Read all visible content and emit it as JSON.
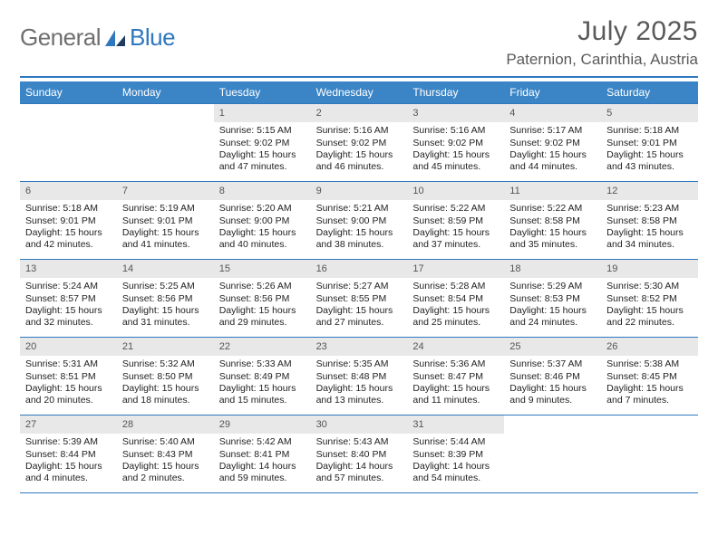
{
  "logo": {
    "word1": "General",
    "word2": "Blue"
  },
  "title": "July 2025",
  "location": "Paternion, Carinthia, Austria",
  "colors": {
    "brand_blue": "#2f78bf",
    "header_blue": "#3b85c6",
    "grey_text": "#5a5a5a",
    "daynum_bg": "#e8e8e8",
    "body_text": "#222222",
    "white": "#ffffff"
  },
  "weekdays": [
    "Sunday",
    "Monday",
    "Tuesday",
    "Wednesday",
    "Thursday",
    "Friday",
    "Saturday"
  ],
  "weeks": [
    [
      null,
      null,
      {
        "n": "1",
        "sr": "Sunrise: 5:15 AM",
        "ss": "Sunset: 9:02 PM",
        "d1": "Daylight: 15 hours",
        "d2": "and 47 minutes."
      },
      {
        "n": "2",
        "sr": "Sunrise: 5:16 AM",
        "ss": "Sunset: 9:02 PM",
        "d1": "Daylight: 15 hours",
        "d2": "and 46 minutes."
      },
      {
        "n": "3",
        "sr": "Sunrise: 5:16 AM",
        "ss": "Sunset: 9:02 PM",
        "d1": "Daylight: 15 hours",
        "d2": "and 45 minutes."
      },
      {
        "n": "4",
        "sr": "Sunrise: 5:17 AM",
        "ss": "Sunset: 9:02 PM",
        "d1": "Daylight: 15 hours",
        "d2": "and 44 minutes."
      },
      {
        "n": "5",
        "sr": "Sunrise: 5:18 AM",
        "ss": "Sunset: 9:01 PM",
        "d1": "Daylight: 15 hours",
        "d2": "and 43 minutes."
      }
    ],
    [
      {
        "n": "6",
        "sr": "Sunrise: 5:18 AM",
        "ss": "Sunset: 9:01 PM",
        "d1": "Daylight: 15 hours",
        "d2": "and 42 minutes."
      },
      {
        "n": "7",
        "sr": "Sunrise: 5:19 AM",
        "ss": "Sunset: 9:01 PM",
        "d1": "Daylight: 15 hours",
        "d2": "and 41 minutes."
      },
      {
        "n": "8",
        "sr": "Sunrise: 5:20 AM",
        "ss": "Sunset: 9:00 PM",
        "d1": "Daylight: 15 hours",
        "d2": "and 40 minutes."
      },
      {
        "n": "9",
        "sr": "Sunrise: 5:21 AM",
        "ss": "Sunset: 9:00 PM",
        "d1": "Daylight: 15 hours",
        "d2": "and 38 minutes."
      },
      {
        "n": "10",
        "sr": "Sunrise: 5:22 AM",
        "ss": "Sunset: 8:59 PM",
        "d1": "Daylight: 15 hours",
        "d2": "and 37 minutes."
      },
      {
        "n": "11",
        "sr": "Sunrise: 5:22 AM",
        "ss": "Sunset: 8:58 PM",
        "d1": "Daylight: 15 hours",
        "d2": "and 35 minutes."
      },
      {
        "n": "12",
        "sr": "Sunrise: 5:23 AM",
        "ss": "Sunset: 8:58 PM",
        "d1": "Daylight: 15 hours",
        "d2": "and 34 minutes."
      }
    ],
    [
      {
        "n": "13",
        "sr": "Sunrise: 5:24 AM",
        "ss": "Sunset: 8:57 PM",
        "d1": "Daylight: 15 hours",
        "d2": "and 32 minutes."
      },
      {
        "n": "14",
        "sr": "Sunrise: 5:25 AM",
        "ss": "Sunset: 8:56 PM",
        "d1": "Daylight: 15 hours",
        "d2": "and 31 minutes."
      },
      {
        "n": "15",
        "sr": "Sunrise: 5:26 AM",
        "ss": "Sunset: 8:56 PM",
        "d1": "Daylight: 15 hours",
        "d2": "and 29 minutes."
      },
      {
        "n": "16",
        "sr": "Sunrise: 5:27 AM",
        "ss": "Sunset: 8:55 PM",
        "d1": "Daylight: 15 hours",
        "d2": "and 27 minutes."
      },
      {
        "n": "17",
        "sr": "Sunrise: 5:28 AM",
        "ss": "Sunset: 8:54 PM",
        "d1": "Daylight: 15 hours",
        "d2": "and 25 minutes."
      },
      {
        "n": "18",
        "sr": "Sunrise: 5:29 AM",
        "ss": "Sunset: 8:53 PM",
        "d1": "Daylight: 15 hours",
        "d2": "and 24 minutes."
      },
      {
        "n": "19",
        "sr": "Sunrise: 5:30 AM",
        "ss": "Sunset: 8:52 PM",
        "d1": "Daylight: 15 hours",
        "d2": "and 22 minutes."
      }
    ],
    [
      {
        "n": "20",
        "sr": "Sunrise: 5:31 AM",
        "ss": "Sunset: 8:51 PM",
        "d1": "Daylight: 15 hours",
        "d2": "and 20 minutes."
      },
      {
        "n": "21",
        "sr": "Sunrise: 5:32 AM",
        "ss": "Sunset: 8:50 PM",
        "d1": "Daylight: 15 hours",
        "d2": "and 18 minutes."
      },
      {
        "n": "22",
        "sr": "Sunrise: 5:33 AM",
        "ss": "Sunset: 8:49 PM",
        "d1": "Daylight: 15 hours",
        "d2": "and 15 minutes."
      },
      {
        "n": "23",
        "sr": "Sunrise: 5:35 AM",
        "ss": "Sunset: 8:48 PM",
        "d1": "Daylight: 15 hours",
        "d2": "and 13 minutes."
      },
      {
        "n": "24",
        "sr": "Sunrise: 5:36 AM",
        "ss": "Sunset: 8:47 PM",
        "d1": "Daylight: 15 hours",
        "d2": "and 11 minutes."
      },
      {
        "n": "25",
        "sr": "Sunrise: 5:37 AM",
        "ss": "Sunset: 8:46 PM",
        "d1": "Daylight: 15 hours",
        "d2": "and 9 minutes."
      },
      {
        "n": "26",
        "sr": "Sunrise: 5:38 AM",
        "ss": "Sunset: 8:45 PM",
        "d1": "Daylight: 15 hours",
        "d2": "and 7 minutes."
      }
    ],
    [
      {
        "n": "27",
        "sr": "Sunrise: 5:39 AM",
        "ss": "Sunset: 8:44 PM",
        "d1": "Daylight: 15 hours",
        "d2": "and 4 minutes."
      },
      {
        "n": "28",
        "sr": "Sunrise: 5:40 AM",
        "ss": "Sunset: 8:43 PM",
        "d1": "Daylight: 15 hours",
        "d2": "and 2 minutes."
      },
      {
        "n": "29",
        "sr": "Sunrise: 5:42 AM",
        "ss": "Sunset: 8:41 PM",
        "d1": "Daylight: 14 hours",
        "d2": "and 59 minutes."
      },
      {
        "n": "30",
        "sr": "Sunrise: 5:43 AM",
        "ss": "Sunset: 8:40 PM",
        "d1": "Daylight: 14 hours",
        "d2": "and 57 minutes."
      },
      {
        "n": "31",
        "sr": "Sunrise: 5:44 AM",
        "ss": "Sunset: 8:39 PM",
        "d1": "Daylight: 14 hours",
        "d2": "and 54 minutes."
      },
      null,
      null
    ]
  ]
}
